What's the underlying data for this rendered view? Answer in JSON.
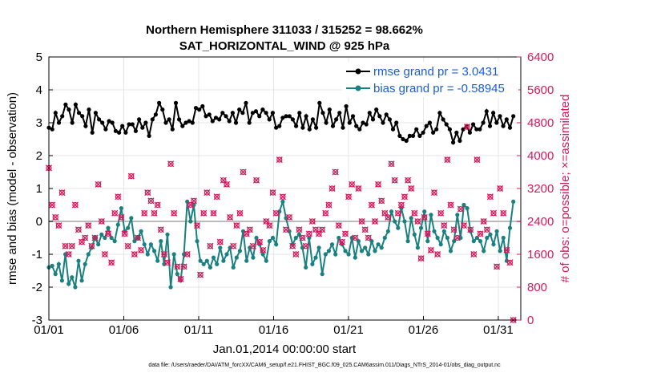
{
  "chart_data": {
    "type": "line",
    "title": "Northern Hemisphere 311033 / 315252 = 98.662%",
    "subtitle": "SAT_HORIZONTAL_WIND @ 925 hPa",
    "xlabel": "Jan.01,2014 00:00:00 start",
    "ylabel": "rmse and bias (model - observation)",
    "ylabel_right": "# of obs: o=possible; ×=assimilated",
    "footnote": "data file: /Users/raeder/DAI/ATM_forcXX/CAM6_setup/f.e21.FHIST_BGC.f09_025.CAM6assim.011/Diags_NTrS_2014-01/obs_diag_output.nc",
    "x_ticks": [
      "01/01",
      "01/06",
      "01/11",
      "01/16",
      "01/21",
      "01/26",
      "01/31"
    ],
    "x_tick_days": [
      0,
      5,
      10,
      15,
      20,
      25,
      30
    ],
    "xlim": [
      0,
      31.5
    ],
    "ylim": [
      -3,
      5
    ],
    "y_ticks": [
      -3,
      -2,
      -1,
      0,
      1,
      2,
      3,
      4,
      5
    ],
    "ylim_right": [
      0,
      6400
    ],
    "y_ticks_right": [
      0,
      800,
      1600,
      2400,
      3200,
      4000,
      4800,
      5600,
      6400
    ],
    "grid": true,
    "legend_position": "top-right",
    "colors": {
      "rmse": "#000000",
      "bias": "#1a8080",
      "obs": "#d6185a",
      "zero_line": "#bbbbbb",
      "legend_text": "#1a5ed6"
    },
    "series": [
      {
        "name": "rmse",
        "legend": "rmse grand pr = 3.0431",
        "values": [
          2.85,
          2.8,
          3.3,
          3.0,
          3.2,
          3.55,
          3.4,
          3.0,
          3.55,
          3.3,
          3.2,
          2.9,
          3.4,
          2.7,
          3.3,
          3.1,
          3.0,
          2.8,
          3.05,
          3.0,
          2.75,
          2.7,
          2.9,
          2.7,
          2.95,
          2.95,
          2.75,
          3.1,
          2.85,
          3.0,
          2.6,
          3.1,
          3.25,
          3.6,
          3.4,
          3.0,
          3.1,
          2.8,
          3.6,
          3.1,
          2.9,
          3.0,
          3.05,
          3.0,
          3.45,
          3.4,
          3.5,
          3.2,
          3.25,
          3.05,
          3.15,
          3.1,
          3.3,
          3.2,
          3.05,
          3.3,
          3.0,
          3.4,
          3.3,
          3.6,
          3.0,
          3.3,
          3.35,
          3.2,
          3.4,
          3.3,
          3.1,
          3.3,
          2.85,
          2.9,
          3.15,
          3.2,
          3.2,
          3.1,
          2.9,
          3.3,
          2.85,
          3.2,
          2.8,
          3.1,
          2.85,
          3.6,
          3.3,
          3.0,
          3.4,
          2.9,
          3.1,
          3.3,
          2.85,
          3.5,
          3.0,
          3.2,
          2.9,
          2.8,
          3.0,
          2.95,
          3.3,
          3.1,
          3.4,
          3.2,
          3.0,
          3.25,
          3.1,
          2.8,
          3.0,
          2.6,
          2.5,
          2.45,
          2.6,
          2.6,
          2.8,
          2.6,
          2.7,
          2.9,
          3.0,
          2.7,
          2.8,
          3.3,
          3.1,
          2.95,
          2.8,
          2.4,
          2.7,
          2.45,
          2.8,
          2.9,
          2.7,
          2.95,
          2.8,
          2.8,
          3.0,
          3.35,
          2.9,
          3.3,
          3.0,
          3.2,
          2.9,
          3.1,
          2.85,
          3.2
        ]
      },
      {
        "name": "bias",
        "legend": "bias grand pr = -0.58945",
        "values": [
          -1.4,
          -1.35,
          -1.6,
          -1.3,
          -1.8,
          -1.0,
          -1.9,
          -1.7,
          -2.0,
          -1.2,
          -1.8,
          -1.3,
          -1.0,
          -0.8,
          -0.5,
          -0.7,
          -0.4,
          -0.5,
          -0.2,
          -0.5,
          -0.6,
          -0.1,
          0.4,
          -0.3,
          -0.2,
          0.1,
          -0.6,
          -0.5,
          -0.3,
          -0.7,
          -1.0,
          -0.7,
          -0.9,
          -1.2,
          -0.6,
          -1.3,
          -0.4,
          -2.0,
          -1.0,
          -1.6,
          -1.8,
          -1.0,
          0.6,
          0.0,
          0.5,
          -0.6,
          -1.2,
          -1.3,
          -1.2,
          -1.4,
          -1.1,
          -1.3,
          -0.8,
          -1.2,
          -1.0,
          -0.8,
          -1.4,
          -1.1,
          -0.9,
          -0.3,
          -1.2,
          -0.8,
          -1.1,
          -0.5,
          -0.7,
          -1.0,
          -1.2,
          -0.6,
          -0.5,
          -0.7,
          0.3,
          0.6,
          0.1,
          -0.3,
          -0.7,
          -0.5,
          -0.4,
          -0.8,
          -1.4,
          -0.5,
          -1.3,
          -1.1,
          -0.8,
          -1.6,
          -1.0,
          -0.9,
          -0.7,
          -1.0,
          -0.5,
          -0.7,
          -0.9,
          -1.0,
          -0.5,
          -1.1,
          -0.6,
          -0.9,
          -0.8,
          -1.0,
          -0.6,
          -0.9,
          -0.7,
          -0.8,
          -0.5,
          -0.3,
          0.3,
          0.0,
          -0.2,
          0.4,
          0.0,
          -0.6,
          0.1,
          -0.4,
          -0.8,
          -0.2,
          0.3,
          -0.6,
          0.2,
          -0.3,
          -0.5,
          -0.7,
          -0.3,
          -0.5,
          -0.9,
          -0.6,
          0.2,
          -0.5,
          0.5,
          0.4,
          -0.3,
          -0.6,
          -0.5,
          -0.6,
          -0.9,
          -0.5,
          -0.4,
          -0.7,
          -0.3,
          -0.9,
          -0.5,
          -1.2,
          -0.2,
          0.6
        ]
      }
    ],
    "obs_counts": [
      3700,
      2800,
      2500,
      2300,
      3100,
      1800,
      1600,
      1800,
      2800,
      2200,
      1900,
      2000,
      2300,
      1800,
      2000,
      3300,
      2400,
      1600,
      2100,
      1400,
      2600,
      3000,
      2500,
      2100,
      1800,
      3500,
      1600,
      2000,
      1700,
      2600,
      3100,
      2900,
      2600,
      2800,
      2200,
      1600,
      1400,
      3800,
      2600,
      1300,
      1000,
      1300,
      1600,
      2800,
      2900,
      2300,
      1100,
      2600,
      3100,
      1800,
      2600,
      3000,
      1900,
      3400,
      3300,
      2500,
      1800,
      2300,
      2600,
      3600,
      2100,
      2200,
      1800,
      3400,
      1900,
      1700,
      2400,
      2300,
      3100,
      2600,
      3900,
      3000,
      2200,
      2500,
      1800,
      1600,
      2200,
      2000,
      1800,
      2100,
      2400,
      2200,
      2100,
      2200,
      2600,
      2800,
      3200,
      3600,
      2300,
      1900,
      2100,
      3000,
      3300,
      2000,
      3200,
      2400,
      2200,
      2000,
      2800,
      2400,
      3300,
      2900,
      2600,
      2500,
      3800,
      3400,
      2600,
      2800,
      3000,
      3400,
      3200,
      2600,
      2400,
      1500,
      2500,
      2100,
      1700,
      3100,
      1600,
      2600,
      2300,
      3900,
      2800,
      2200,
      2000,
      2700,
      2300,
      4700,
      2200,
      1600,
      3900,
      2100,
      2400,
      2200,
      3000,
      2600,
      1300,
      3200,
      2600,
      1700,
      1400,
      0
    ]
  }
}
